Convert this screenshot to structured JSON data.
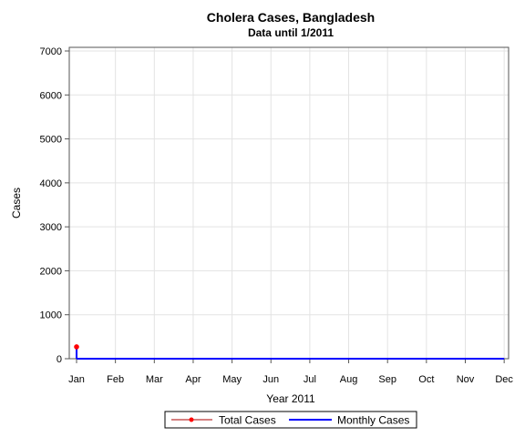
{
  "chart_data": {
    "type": "line",
    "title": "Cholera Cases, Bangladesh",
    "subtitle": "Data until 1/2011",
    "xlabel": "Year 2011",
    "ylabel": "Cases",
    "ylim": [
      0,
      7000
    ],
    "yticks": [
      0,
      1000,
      2000,
      3000,
      4000,
      5000,
      6000,
      7000
    ],
    "categories": [
      "Jan",
      "Feb",
      "Mar",
      "Apr",
      "May",
      "Jun",
      "Jul",
      "Aug",
      "Sep",
      "Oct",
      "Nov",
      "Dec"
    ],
    "grid": true,
    "series": [
      {
        "name": "Total Cases",
        "x": [
          "Jan"
        ],
        "values": [
          270
        ],
        "color": "#ff0000",
        "line_color": "#aa0000",
        "marker": "circle"
      },
      {
        "name": "Monthly Cases",
        "x": [
          "Jan"
        ],
        "values": [
          270
        ],
        "color": "#0000ff",
        "style": "needle"
      }
    ],
    "legend": {
      "position": "bottom",
      "entries": [
        "Total Cases",
        "Monthly Cases"
      ]
    }
  }
}
